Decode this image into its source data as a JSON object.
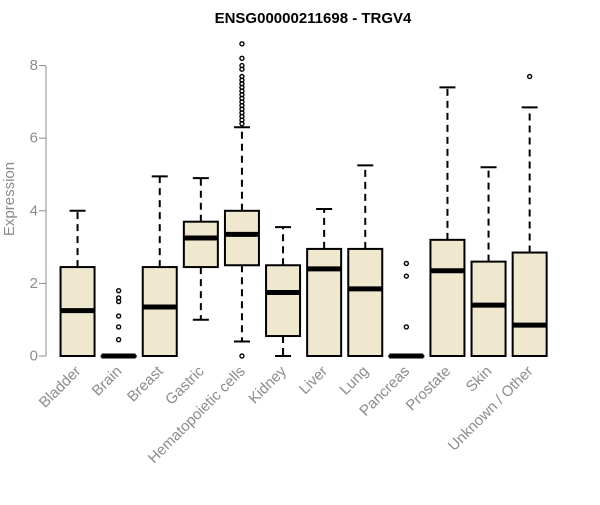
{
  "chart_data": {
    "type": "boxplot",
    "title": "ENSG00000211698 - TRGV4",
    "xlabel": "",
    "ylabel": "Expression",
    "ylim": [
      0,
      8.6
    ],
    "yticks": [
      0,
      2,
      4,
      6,
      8
    ],
    "grid": false,
    "legend": "none",
    "box_fill": "#efe8cf",
    "stroke": "#000000",
    "text_color": "#8c8c8c",
    "categories": [
      "Bladder",
      "Brain",
      "Breast",
      "Gastric",
      "Hematopoietic cells",
      "Kidney",
      "Liver",
      "Lung",
      "Pancreas",
      "Prostate",
      "Skin",
      "Unknown / Other"
    ],
    "boxes": [
      {
        "category": "Bladder",
        "whisker_low": 0,
        "q1": 0,
        "median": 1.25,
        "q3": 2.45,
        "whisker_high": 4.0,
        "outliers": []
      },
      {
        "category": "Brain",
        "whisker_low": 0,
        "q1": 0,
        "median": 0,
        "q3": 0,
        "whisker_high": 0,
        "outliers": [
          0.45,
          0.8,
          1.1,
          1.5,
          1.6,
          1.8
        ]
      },
      {
        "category": "Breast",
        "whisker_low": 0,
        "q1": 0,
        "median": 1.35,
        "q3": 2.45,
        "whisker_high": 4.95,
        "outliers": []
      },
      {
        "category": "Gastric",
        "whisker_low": 1.0,
        "q1": 2.45,
        "median": 3.25,
        "q3": 3.7,
        "whisker_high": 4.9,
        "outliers": []
      },
      {
        "category": "Hematopoietic cells",
        "whisker_low": 0.4,
        "q1": 2.5,
        "median": 3.35,
        "q3": 4.0,
        "whisker_high": 6.3,
        "outliers": [
          0,
          6.4,
          6.5,
          6.6,
          6.7,
          6.8,
          6.9,
          7.0,
          7.1,
          7.2,
          7.3,
          7.4,
          7.5,
          7.6,
          7.7,
          7.9,
          8.0,
          8.2,
          8.6
        ]
      },
      {
        "category": "Kidney",
        "whisker_low": 0,
        "q1": 0.55,
        "median": 1.75,
        "q3": 2.5,
        "whisker_high": 3.55,
        "outliers": []
      },
      {
        "category": "Liver",
        "whisker_low": 0,
        "q1": 0,
        "median": 2.4,
        "q3": 2.95,
        "whisker_high": 4.05,
        "outliers": []
      },
      {
        "category": "Lung",
        "whisker_low": 0,
        "q1": 0,
        "median": 1.85,
        "q3": 2.95,
        "whisker_high": 5.25,
        "outliers": []
      },
      {
        "category": "Pancreas",
        "whisker_low": 0,
        "q1": 0,
        "median": 0,
        "q3": 0,
        "whisker_high": 0,
        "outliers": [
          0.8,
          2.2,
          2.55
        ]
      },
      {
        "category": "Prostate",
        "whisker_low": 0,
        "q1": 0,
        "median": 2.35,
        "q3": 3.2,
        "whisker_high": 7.4,
        "outliers": []
      },
      {
        "category": "Skin",
        "whisker_low": 0,
        "q1": 0,
        "median": 1.4,
        "q3": 2.6,
        "whisker_high": 5.2,
        "outliers": []
      },
      {
        "category": "Unknown / Other",
        "whisker_low": 0,
        "q1": 0,
        "median": 0.85,
        "q3": 2.85,
        "whisker_high": 6.85,
        "outliers": [
          7.7
        ]
      }
    ]
  }
}
